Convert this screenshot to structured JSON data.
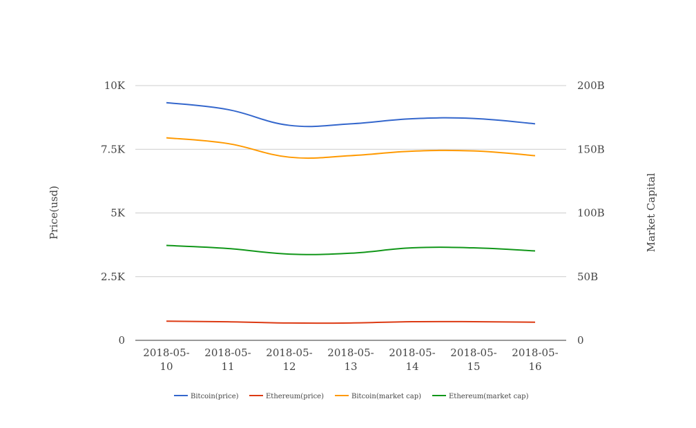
{
  "chart_data": {
    "type": "line",
    "x": [
      "2018-05-10",
      "2018-05-11",
      "2018-05-12",
      "2018-05-13",
      "2018-05-14",
      "2018-05-15",
      "2018-05-16"
    ],
    "x_tick_labels": [
      [
        "2018-05-",
        "10"
      ],
      [
        "2018-05-",
        "11"
      ],
      [
        "2018-05-",
        "12"
      ],
      [
        "2018-05-",
        "13"
      ],
      [
        "2018-05-",
        "14"
      ],
      [
        "2018-05-",
        "15"
      ],
      [
        "2018-05-",
        "16"
      ]
    ],
    "ylabel_left": "Price(usd)",
    "ylabel_right": "Market Capital",
    "ylim_left": [
      0,
      10000
    ],
    "ylim_right": [
      0,
      200000000000
    ],
    "y_ticks_left": [
      {
        "value": 0,
        "label": "0"
      },
      {
        "value": 2500,
        "label": "2.5K"
      },
      {
        "value": 5000,
        "label": "5K"
      },
      {
        "value": 7500,
        "label": "7.5K"
      },
      {
        "value": 10000,
        "label": "10K"
      }
    ],
    "y_ticks_right": [
      {
        "value": 0,
        "label": "0"
      },
      {
        "value": 50000000000,
        "label": "50B"
      },
      {
        "value": 100000000000,
        "label": "100B"
      },
      {
        "value": 150000000000,
        "label": "150B"
      },
      {
        "value": 200000000000,
        "label": "200B"
      }
    ],
    "grid": true,
    "legend_position": "bottom",
    "series": [
      {
        "name": "Bitcoin(price)",
        "axis": "left",
        "color": "#3366cc",
        "values": [
          9330,
          9060,
          8440,
          8500,
          8700,
          8710,
          8500
        ]
      },
      {
        "name": "Ethereum(price)",
        "axis": "left",
        "color": "#dc3912",
        "values": [
          752,
          730,
          680,
          682,
          731,
          732,
          712
        ]
      },
      {
        "name": "Bitcoin(market cap)",
        "axis": "right",
        "color": "#ff9900",
        "values": [
          159000000000,
          154500000000,
          143800000000,
          145000000000,
          148500000000,
          148700000000,
          145000000000
        ]
      },
      {
        "name": "Ethereum(market cap)",
        "axis": "right",
        "color": "#109618",
        "values": [
          74500000000,
          72100000000,
          67700000000,
          68400000000,
          72600000000,
          72600000000,
          70200000000
        ]
      }
    ]
  }
}
